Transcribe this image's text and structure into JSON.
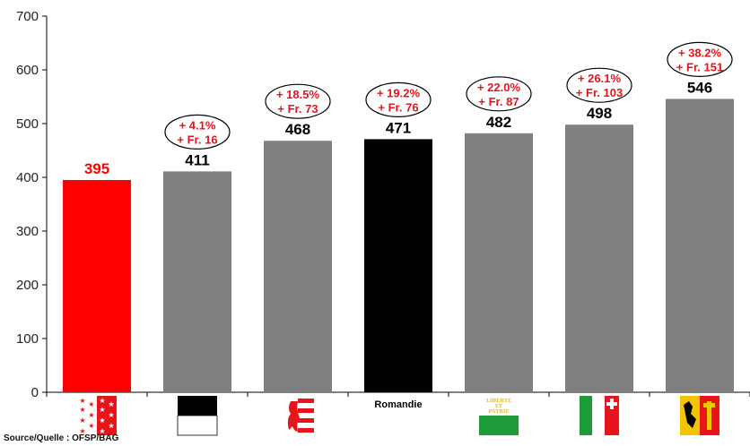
{
  "chart_data": {
    "type": "bar",
    "categories": [
      "",
      "",
      "",
      "Romandie",
      "",
      "",
      ""
    ],
    "values": [
      395,
      411,
      468,
      471,
      482,
      498,
      546
    ],
    "value_labels": [
      "395",
      "411",
      "468",
      "471",
      "482",
      "498",
      "546"
    ],
    "annotations": [
      null,
      [
        "+ 4.1%",
        "+ Fr. 16"
      ],
      [
        "+ 18.5%",
        "+ Fr. 73"
      ],
      [
        "+ 19.2%",
        "+ Fr. 76"
      ],
      [
        "+ 22.0%",
        "+ Fr. 87"
      ],
      [
        "+ 26.1%",
        "+ Fr. 103"
      ],
      [
        "+ 38.2%",
        "+ Fr. 151"
      ]
    ],
    "flag_icons": [
      "valais-flag-icon",
      "fribourg-flag-icon",
      "jura-flag-icon",
      "",
      "vaud-flag-icon",
      "neuchatel-flag-icon",
      "geneva-flag-icon"
    ],
    "vaud_flag_text": [
      "LIBERTÉ",
      "ET",
      "PATRIE"
    ],
    "bar_colors": [
      "#ff0000",
      "#808080",
      "#808080",
      "#000000",
      "#808080",
      "#808080",
      "#808080"
    ],
    "value_label_colors": [
      "#ff0000",
      "#000000",
      "#000000",
      "#000000",
      "#000000",
      "#000000",
      "#000000"
    ],
    "y_ticks": [
      "0",
      "100",
      "200",
      "300",
      "400",
      "500",
      "600",
      "700"
    ],
    "ylim": [
      0,
      700
    ],
    "title": "",
    "xlabel": "",
    "ylabel": "",
    "grid": false,
    "legend": "none"
  },
  "source": "Source/Quelle : OFSP/BAG"
}
